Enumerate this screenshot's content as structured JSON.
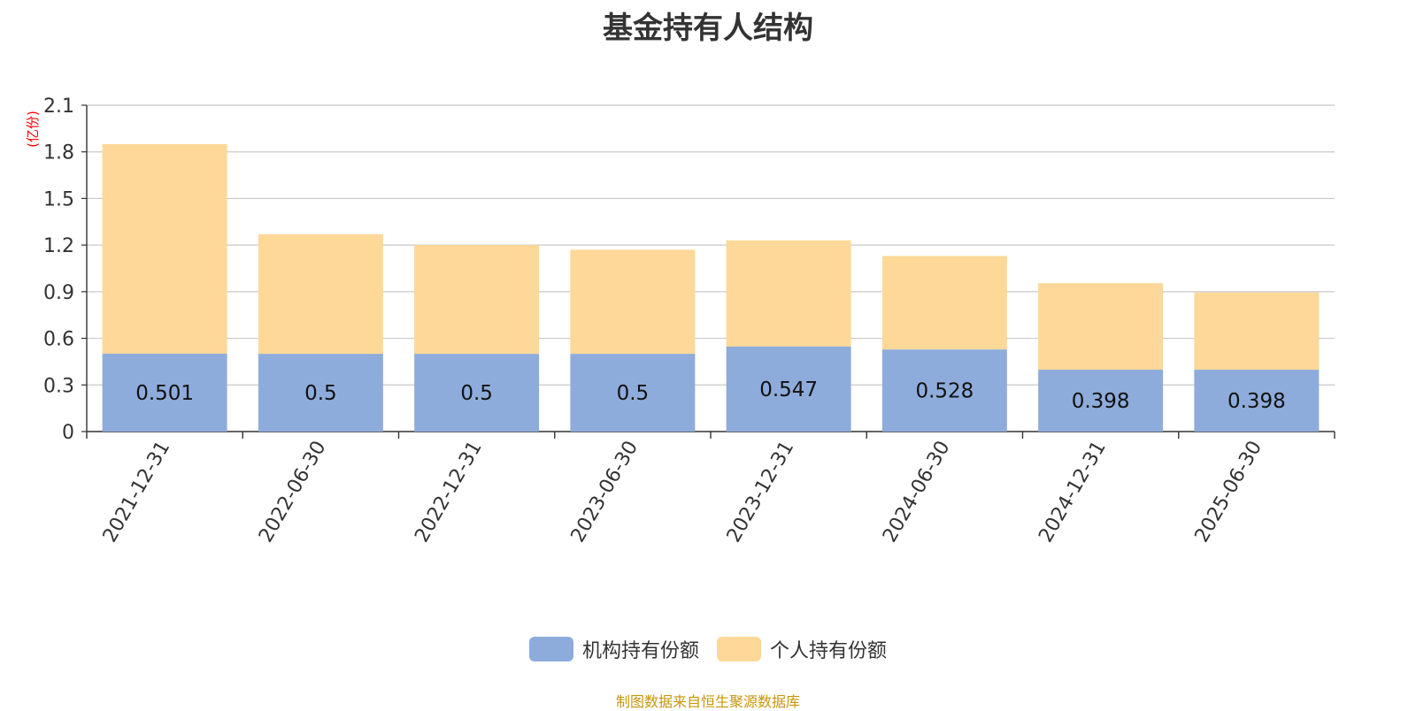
{
  "title": "基金持有人结构",
  "source": "制图数据来自恒生聚源数据库",
  "colors": {
    "institution": "#8eacdb",
    "individual": "#fdd898",
    "unit": "#ff0000",
    "source": "#c8960a",
    "grid": "#c8c8c8",
    "axis": "#333333",
    "text": "#333333"
  },
  "chart_data": {
    "type": "bar",
    "stacked": true,
    "title": "基金持有人结构",
    "y_unit": "(亿份)",
    "ylim": [
      0,
      2.1
    ],
    "y_ticks": [
      "0",
      "0.3",
      "0.6",
      "0.9",
      "1.2",
      "1.5",
      "1.8",
      "2.1"
    ],
    "categories": [
      "2021-12-31",
      "2022-06-30",
      "2022-12-31",
      "2023-06-30",
      "2023-12-31",
      "2024-06-30",
      "2024-12-31",
      "2025-06-30"
    ],
    "series": [
      {
        "name": "机构持有份额",
        "values": [
          0.501,
          0.5,
          0.5,
          0.5,
          0.547,
          0.528,
          0.398,
          0.398
        ],
        "labels": [
          "0.501",
          "0.5",
          "0.5",
          "0.5",
          "0.547",
          "0.528",
          "0.398",
          "0.398"
        ]
      },
      {
        "name": "个人持有份额",
        "values": [
          1.349,
          0.77,
          0.7,
          0.67,
          0.683,
          0.602,
          0.557,
          0.497
        ]
      }
    ],
    "grid": true,
    "legend_position": "bottom"
  }
}
